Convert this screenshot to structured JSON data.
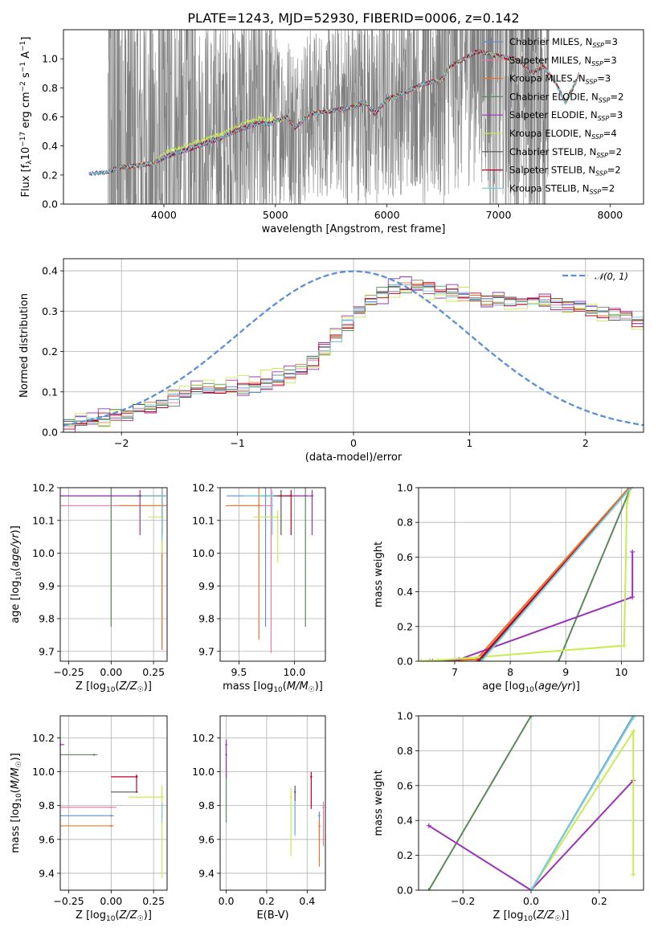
{
  "title": "PLATE=1243, MJD=52930, FIBERID=0006, z=0.142",
  "colors": {
    "Chabrier MILES": "#5b8fd8",
    "Salpeter MILES": "#f07aa8",
    "Kroupa MILES": "#e8762b",
    "Chabrier ELODIE": "#5a8a5a",
    "Salpeter ELODIE": "#9b30b8",
    "Kroupa ELODIE": "#c8ec50",
    "Chabrier STELIB": "#555555",
    "Salpeter STELIB": "#c00020",
    "Kroupa STELIB": "#7ad0d8",
    "data": "#808080",
    "normal": "#5b8fd8"
  },
  "legend_models": [
    {
      "name": "Chabrier MILES",
      "label": "Chabrier MILES, N",
      "n": "=3"
    },
    {
      "name": "Salpeter MILES",
      "label": "Salpeter MILES, N",
      "n": "=3"
    },
    {
      "name": "Kroupa MILES",
      "label": "Kroupa MILES, N",
      "n": "=3"
    },
    {
      "name": "Chabrier ELODIE",
      "label": "Chabrier ELODIE, N",
      "n": "=2"
    },
    {
      "name": "Salpeter ELODIE",
      "label": "Salpeter ELODIE, N",
      "n": "=3"
    },
    {
      "name": "Kroupa ELODIE",
      "label": "Kroupa ELODIE, N",
      "n": "=4"
    },
    {
      "name": "Chabrier STELIB",
      "label": "Chabrier STELIB, N",
      "n": "=2"
    },
    {
      "name": "Salpeter STELIB",
      "label": "Salpeter STELIB, N",
      "n": "=2"
    },
    {
      "name": "Kroupa STELIB",
      "label": "Kroupa STELIB, N",
      "n": "=2"
    }
  ],
  "legend_sub": "SSP",
  "normal_label": "𝒩(0, 1)",
  "chart_data": [
    {
      "id": "spectrum",
      "type": "line",
      "xlabel": "wavelength [Angstrom, rest frame]",
      "ylabel": "Flux [f_λ10^-17 erg cm^-2 s^-1 A^-1]",
      "xlim": [
        3100,
        8300
      ],
      "ylim": [
        0,
        1.2
      ],
      "xticks": [
        4000,
        5000,
        6000,
        7000,
        8000
      ],
      "yticks": [
        0.0,
        0.2,
        0.4,
        0.6,
        0.8,
        1.0
      ],
      "grid": false,
      "legend": "top-right",
      "model_continuum": [
        [
          3300,
          0.21
        ],
        [
          3500,
          0.22
        ],
        [
          3600,
          0.25
        ],
        [
          3800,
          0.27
        ],
        [
          3900,
          0.28
        ],
        [
          4000,
          0.32
        ],
        [
          4100,
          0.35
        ],
        [
          4200,
          0.37
        ],
        [
          4300,
          0.4
        ],
        [
          4500,
          0.45
        ],
        [
          4700,
          0.52
        ],
        [
          4860,
          0.56
        ],
        [
          4950,
          0.55
        ],
        [
          5100,
          0.6
        ],
        [
          5175,
          0.52
        ],
        [
          5300,
          0.62
        ],
        [
          5500,
          0.64
        ],
        [
          5700,
          0.67
        ],
        [
          5800,
          0.7
        ],
        [
          5890,
          0.62
        ],
        [
          6000,
          0.72
        ],
        [
          6200,
          0.78
        ],
        [
          6300,
          0.82
        ],
        [
          6500,
          0.86
        ],
        [
          6560,
          0.95
        ],
        [
          6700,
          1.0
        ],
        [
          6800,
          1.05
        ],
        [
          7000,
          1.02
        ],
        [
          7200,
          0.98
        ],
        [
          7300,
          0.9
        ],
        [
          7400,
          0.95
        ],
        [
          7500,
          0.85
        ],
        [
          7600,
          0.7
        ],
        [
          7700,
          0.85
        ],
        [
          7850,
          1.2
        ]
      ]
    },
    {
      "id": "residuals",
      "type": "histogram",
      "xlabel": "(data-model)/error",
      "ylabel": "Normed distribution",
      "xlim": [
        -2.5,
        2.5
      ],
      "ylim": [
        0,
        0.43
      ],
      "xticks": [
        -2,
        -1,
        0,
        1,
        2
      ],
      "yticks": [
        0.0,
        0.1,
        0.2,
        0.3,
        0.4
      ],
      "bin_width": 0.1,
      "bin_start": -2.5,
      "mean_profile": [
        0.022,
        0.025,
        0.028,
        0.033,
        0.04,
        0.048,
        0.057,
        0.065,
        0.072,
        0.081,
        0.094,
        0.101,
        0.106,
        0.107,
        0.108,
        0.108,
        0.112,
        0.117,
        0.127,
        0.139,
        0.156,
        0.179,
        0.205,
        0.234,
        0.267,
        0.299,
        0.325,
        0.345,
        0.357,
        0.363,
        0.362,
        0.358,
        0.352,
        0.345,
        0.338,
        0.332,
        0.328,
        0.326,
        0.325,
        0.325,
        0.325,
        0.323,
        0.32,
        0.315,
        0.31,
        0.303,
        0.296,
        0.289,
        0.283,
        0.276,
        0.268,
        0.259,
        0.248,
        0.237,
        0.228,
        0.221,
        0.214,
        0.207,
        0.198,
        0.186,
        0.173,
        0.161,
        0.154,
        0.151,
        0.15,
        0.147,
        0.14,
        0.131,
        0.122,
        0.114,
        0.107,
        0.1,
        0.095,
        0.091,
        0.088,
        0.086,
        0.084,
        0.081,
        0.076,
        0.07,
        0.065,
        0.061,
        0.058,
        0.056,
        0.055,
        0.054,
        0.052,
        0.049,
        0.046,
        0.044,
        0.043,
        0.043,
        0.043,
        0.042,
        0.04,
        0.037,
        0.035,
        0.034,
        0.033,
        0.032
      ]
    },
    {
      "id": "age-vs-Z",
      "type": "scatter",
      "xlabel": "Z [log10(Z/Z☉)]",
      "ylabel": "age  [log10(age/yr)]",
      "xlim": [
        -0.3,
        0.33
      ],
      "ylim": [
        9.67,
        10.2
      ],
      "xticks": [
        -0.25,
        0.0,
        0.25
      ],
      "yticks": [
        9.7,
        9.8,
        9.9,
        10.0,
        10.1,
        10.2
      ],
      "xticklabels": [
        "−0.25",
        "0.00",
        "0.25"
      ],
      "points": [
        {
          "m": "Chabrier MILES",
          "x": 0.3,
          "y": 10.175,
          "xe": 0.5,
          "ye": 0.12
        },
        {
          "m": "Salpeter MILES",
          "x": 0.3,
          "y": 10.145,
          "xe": 0.75,
          "ye": 0.44
        },
        {
          "m": "Kroupa MILES",
          "x": 0.3,
          "y": 10.145,
          "xe": 0.25,
          "ye": 0.44
        },
        {
          "m": "Chabrier ELODIE",
          "x": 0.0,
          "y": 10.175,
          "xe": 0.3,
          "ye": 0.4
        },
        {
          "m": "Salpeter ELODIE",
          "x": 0.17,
          "y": 10.175,
          "xe": 0.6,
          "ye": 0.12
        },
        {
          "m": "Kroupa ELODIE",
          "x": 0.3,
          "y": 10.11,
          "xe": 0.08,
          "ye": 0.11
        },
        {
          "m": "Chabrier STELIB",
          "x": 0.3,
          "y": 10.175,
          "xe": 0.15,
          "ye": 0.12
        },
        {
          "m": "Salpeter STELIB",
          "x": 0.3,
          "y": 10.175,
          "xe": 0.1,
          "ye": 0.12
        },
        {
          "m": "Kroupa STELIB",
          "x": 0.3,
          "y": 10.175,
          "xe": 0.12,
          "ye": 0.14
        }
      ]
    },
    {
      "id": "age-vs-mass",
      "type": "scatter",
      "xlabel": "mass [log10(M/M☉)]",
      "ylabel": "",
      "xlim": [
        9.33,
        10.28
      ],
      "ylim": [
        9.67,
        10.2
      ],
      "xticks": [
        9.5,
        10.0
      ],
      "yticks": [
        9.7,
        9.8,
        9.9,
        10.0,
        10.1,
        10.2
      ],
      "points": [
        {
          "m": "Chabrier MILES",
          "x": 9.74,
          "y": 10.175,
          "xe": 0.35,
          "ye": 0.4
        },
        {
          "m": "Salpeter MILES",
          "x": 9.79,
          "y": 10.145,
          "xe": 0.35,
          "ye": 0.45
        },
        {
          "m": "Kroupa MILES",
          "x": 9.68,
          "y": 10.145,
          "xe": 0.3,
          "ye": 0.41
        },
        {
          "m": "Chabrier ELODIE",
          "x": 10.1,
          "y": 10.175,
          "xe": 0.35,
          "ye": 0.4
        },
        {
          "m": "Salpeter ELODIE",
          "x": 10.16,
          "y": 10.175,
          "xe": 0.25,
          "ye": 0.12
        },
        {
          "m": "Kroupa ELODIE",
          "x": 9.85,
          "y": 10.11,
          "xe": 0.22,
          "ye": 0.14
        },
        {
          "m": "Chabrier STELIB",
          "x": 9.88,
          "y": 10.175,
          "xe": 0.22,
          "ye": 0.12
        },
        {
          "m": "Salpeter STELIB",
          "x": 9.97,
          "y": 10.175,
          "xe": 0.12,
          "ye": 0.12
        },
        {
          "m": "Kroupa STELIB",
          "x": 9.8,
          "y": 10.175,
          "xe": 0.25,
          "ye": 0.12
        }
      ]
    },
    {
      "id": "weight-vs-age",
      "type": "line",
      "xlabel": "age  [log10(age/yr)]",
      "ylabel": "mass weight",
      "xlim": [
        6.35,
        10.4
      ],
      "ylim": [
        0,
        1.0
      ],
      "xticks": [
        7,
        8,
        9,
        10
      ],
      "yticks": [
        0.0,
        0.2,
        0.4,
        0.6,
        0.8,
        1.0
      ],
      "series": [
        {
          "m": "Chabrier MILES",
          "pts": [
            [
              7.43,
              0
            ],
            [
              10.17,
              1.0
            ]
          ]
        },
        {
          "m": "Salpeter MILES",
          "pts": [
            [
              7.4,
              0
            ],
            [
              10.17,
              1.0
            ]
          ]
        },
        {
          "m": "Kroupa MILES",
          "pts": [
            [
              6.55,
              0
            ],
            [
              7.39,
              0.01
            ],
            [
              10.14,
              1.0
            ]
          ]
        },
        {
          "m": "Chabrier ELODIE",
          "pts": [
            [
              8.87,
              0
            ],
            [
              10.17,
              1.0
            ]
          ]
        },
        {
          "m": "Salpeter ELODIE",
          "pts": [
            [
              6.6,
              0
            ],
            [
              7.08,
              0.01
            ],
            [
              10.2,
              0.37
            ],
            [
              10.2,
              0.63
            ]
          ]
        },
        {
          "m": "Kroupa ELODIE",
          "pts": [
            [
              6.4,
              0
            ],
            [
              6.7,
              0.005
            ],
            [
              10.05,
              0.09
            ],
            [
              10.1,
              0.91
            ],
            [
              10.17,
              1.0
            ]
          ]
        },
        {
          "m": "Chabrier STELIB",
          "pts": [
            [
              7.45,
              0
            ],
            [
              10.17,
              1.0
            ]
          ]
        },
        {
          "m": "Salpeter STELIB",
          "pts": [
            [
              7.42,
              0
            ],
            [
              10.17,
              1.0
            ]
          ]
        },
        {
          "m": "Kroupa STELIB",
          "pts": [
            [
              7.48,
              0
            ],
            [
              10.17,
              1.0
            ]
          ]
        }
      ]
    },
    {
      "id": "mass-vs-Z",
      "type": "scatter",
      "xlabel": "Z [log10(Z/Z☉)]",
      "ylabel": "mass [log10(M/M☉)]",
      "xlim": [
        -0.3,
        0.33
      ],
      "ylim": [
        9.3,
        10.33
      ],
      "xticks": [
        -0.25,
        0.0,
        0.25
      ],
      "yticks": [
        9.4,
        9.6,
        9.8,
        10.0,
        10.2
      ],
      "xticklabels": [
        "−0.25",
        "0.00",
        "0.25"
      ],
      "points": [
        {
          "m": "Chabrier MILES",
          "x": 0.0,
          "y": 9.74,
          "xe": 0.3,
          "ye": 0.0
        },
        {
          "m": "Salpeter MILES",
          "x": 0.0,
          "y": 9.79,
          "xe": 0.62,
          "ye": 0.0
        },
        {
          "m": "Kroupa MILES",
          "x": 0.0,
          "y": 9.68,
          "xe": 0.3,
          "ye": 0.0
        },
        {
          "m": "Chabrier ELODIE",
          "x": -0.1,
          "y": 10.1,
          "xe": 0.4,
          "ye": 0.0
        },
        {
          "m": "Salpeter ELODIE",
          "x": -0.3,
          "y": 10.16,
          "xe": 0.48,
          "ye": 0.18
        },
        {
          "m": "Kroupa ELODIE",
          "x": 0.3,
          "y": 9.85,
          "xe": 0.2,
          "ye": 0.48
        },
        {
          "m": "Chabrier STELIB",
          "x": 0.15,
          "y": 9.88,
          "xe": 0.15,
          "ye": 0.0
        },
        {
          "m": "Salpeter STELIB",
          "x": 0.15,
          "y": 9.97,
          "xe": 0.15,
          "ye": 0.09
        },
        {
          "m": "Kroupa STELIB",
          "x": 0.3,
          "y": 9.8,
          "xe": 0.0,
          "ye": 0.1
        }
      ]
    },
    {
      "id": "mass-vs-EBV",
      "type": "scatter",
      "xlabel": "E(B-V)",
      "ylabel": "",
      "xlim": [
        -0.03,
        0.49
      ],
      "ylim": [
        9.3,
        10.33
      ],
      "xticks": [
        0.0,
        0.2,
        0.4
      ],
      "yticks": [
        9.4,
        9.6,
        9.8,
        10.0,
        10.2
      ],
      "points": [
        {
          "m": "Chabrier MILES",
          "x": 0.46,
          "y": 9.74,
          "ye": 0.16
        },
        {
          "m": "Salpeter MILES",
          "x": 0.48,
          "y": 9.79,
          "ye": 0.23
        },
        {
          "m": "Kroupa MILES",
          "x": 0.46,
          "y": 9.68,
          "ye": 0.24
        },
        {
          "m": "Chabrier ELODIE",
          "x": 0.0,
          "y": 10.1,
          "ye": 0.4
        },
        {
          "m": "Salpeter ELODIE",
          "x": 0.0,
          "y": 10.16,
          "ye": 0.2
        },
        {
          "m": "Kroupa ELODIE",
          "x": 0.32,
          "y": 9.85,
          "ye": 0.35
        },
        {
          "m": "Chabrier STELIB",
          "x": 0.34,
          "y": 9.88,
          "ye": 0.25
        },
        {
          "m": "Salpeter STELIB",
          "x": 0.42,
          "y": 9.97,
          "ye": 0.19
        },
        {
          "m": "Kroupa STELIB",
          "x": 0.34,
          "y": 9.8,
          "ye": 0.18
        }
      ]
    },
    {
      "id": "weight-vs-Z",
      "type": "line",
      "xlabel": "Z [log10(Z/Z☉)]",
      "ylabel": "mass weight",
      "xlim": [
        -0.33,
        0.33
      ],
      "ylim": [
        0,
        1.0
      ],
      "xticks": [
        -0.2,
        0.0,
        0.2
      ],
      "yticks": [
        0.0,
        0.2,
        0.4,
        0.6,
        0.8,
        1.0
      ],
      "xticklabels": [
        "−0.2",
        "0.0",
        "0.2"
      ],
      "series": [
        {
          "m": "Chabrier ELODIE",
          "pts": [
            [
              -0.3,
              0
            ],
            [
              0.0,
              1.0
            ]
          ]
        },
        {
          "m": "Salpeter ELODIE",
          "pts": [
            [
              -0.3,
              0.37
            ],
            [
              0.0,
              0.0
            ],
            [
              0.3,
              0.63
            ]
          ]
        },
        {
          "m": "Kroupa ELODIE",
          "pts": [
            [
              0.0,
              0.0
            ],
            [
              0.3,
              0.91
            ],
            [
              0.3,
              0.09
            ]
          ]
        },
        {
          "m": "Chabrier MILES",
          "pts": [
            [
              0.0,
              0.0
            ],
            [
              0.3,
              1.0
            ]
          ]
        },
        {
          "m": "Kroupa STELIB",
          "pts": [
            [
              0.0,
              0.0
            ],
            [
              0.3,
              0.99
            ]
          ]
        }
      ]
    }
  ]
}
